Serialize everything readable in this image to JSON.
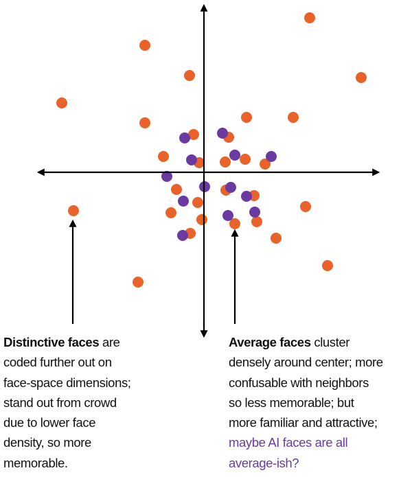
{
  "left_note": {
    "lead": "Distinctive faces",
    "lines": [
      "are",
      "coded further out on",
      "face-space dimensions;",
      "stand out from crowd",
      "due to lower face",
      "density, so more",
      "memorable."
    ]
  },
  "right_note": {
    "lead": "Average faces",
    "lines": [
      "cluster",
      "densely around center; more",
      "confusable with neighbors",
      "so less memorable; but",
      "more familiar and attractive;"
    ],
    "highlight": [
      "maybe AI faces are all",
      "average-ish?"
    ]
  }
}
